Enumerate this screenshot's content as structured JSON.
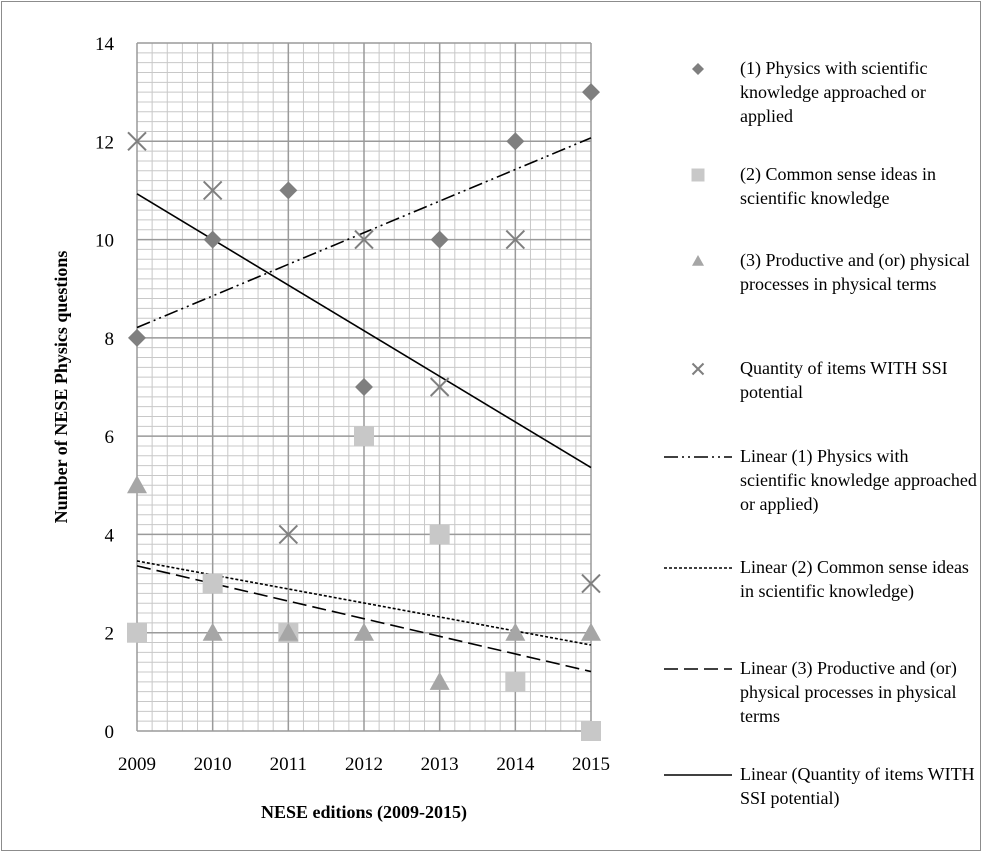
{
  "chart_data": {
    "type": "scatter",
    "title": "",
    "xlabel": "NESE editions (2009-2015)",
    "ylabel": "Number of NESE Physics questions",
    "x": [
      2009,
      2010,
      2011,
      2012,
      2013,
      2014,
      2015
    ],
    "xlim": [
      2009,
      2015
    ],
    "ylim": [
      0,
      14
    ],
    "yticks": [
      0,
      2,
      4,
      6,
      8,
      10,
      12,
      14
    ],
    "grid": true,
    "legend_position": "right",
    "series": [
      {
        "name": "(1) Physics with scientific knowledge approached or applied",
        "marker": "diamond",
        "color": "#7f7f7f",
        "values": [
          8,
          10,
          11,
          7,
          10,
          12,
          13
        ]
      },
      {
        "name": "(2) Common sense ideas in scientific knowledge",
        "marker": "square",
        "color": "#c8c8c8",
        "values": [
          2,
          3,
          2,
          6,
          4,
          1,
          0
        ]
      },
      {
        "name": "(3) Productive and (or) physical processes in physical terms",
        "marker": "triangle",
        "color": "#a6a6a6",
        "values": [
          5,
          2,
          2,
          2,
          1,
          2,
          2
        ]
      },
      {
        "name": "Quantity of items WITH SSI potential",
        "marker": "x",
        "color": "#7f7f7f",
        "values": [
          12,
          11,
          4,
          10,
          7,
          10,
          3
        ]
      }
    ],
    "trendlines": [
      {
        "name": "Linear (1) Physics with scientific knowledge approached or applied)",
        "dash": "dash-dot-dot",
        "color": "#000000",
        "y_start": 8.21,
        "y_end": 12.07
      },
      {
        "name": "Linear (2) Common sense ideas in scientific knowledge)",
        "dash": "dot",
        "color": "#000000",
        "y_start": 3.46,
        "y_end": 1.75
      },
      {
        "name": "Linear (3) Productive and (or) physical processes in physical terms",
        "dash": "dash",
        "color": "#000000",
        "y_start": 3.36,
        "y_end": 1.21
      },
      {
        "name": "Linear (Quantity of items WITH SSI potential)",
        "dash": "solid",
        "color": "#000000",
        "y_start": 10.93,
        "y_end": 5.36
      }
    ]
  }
}
